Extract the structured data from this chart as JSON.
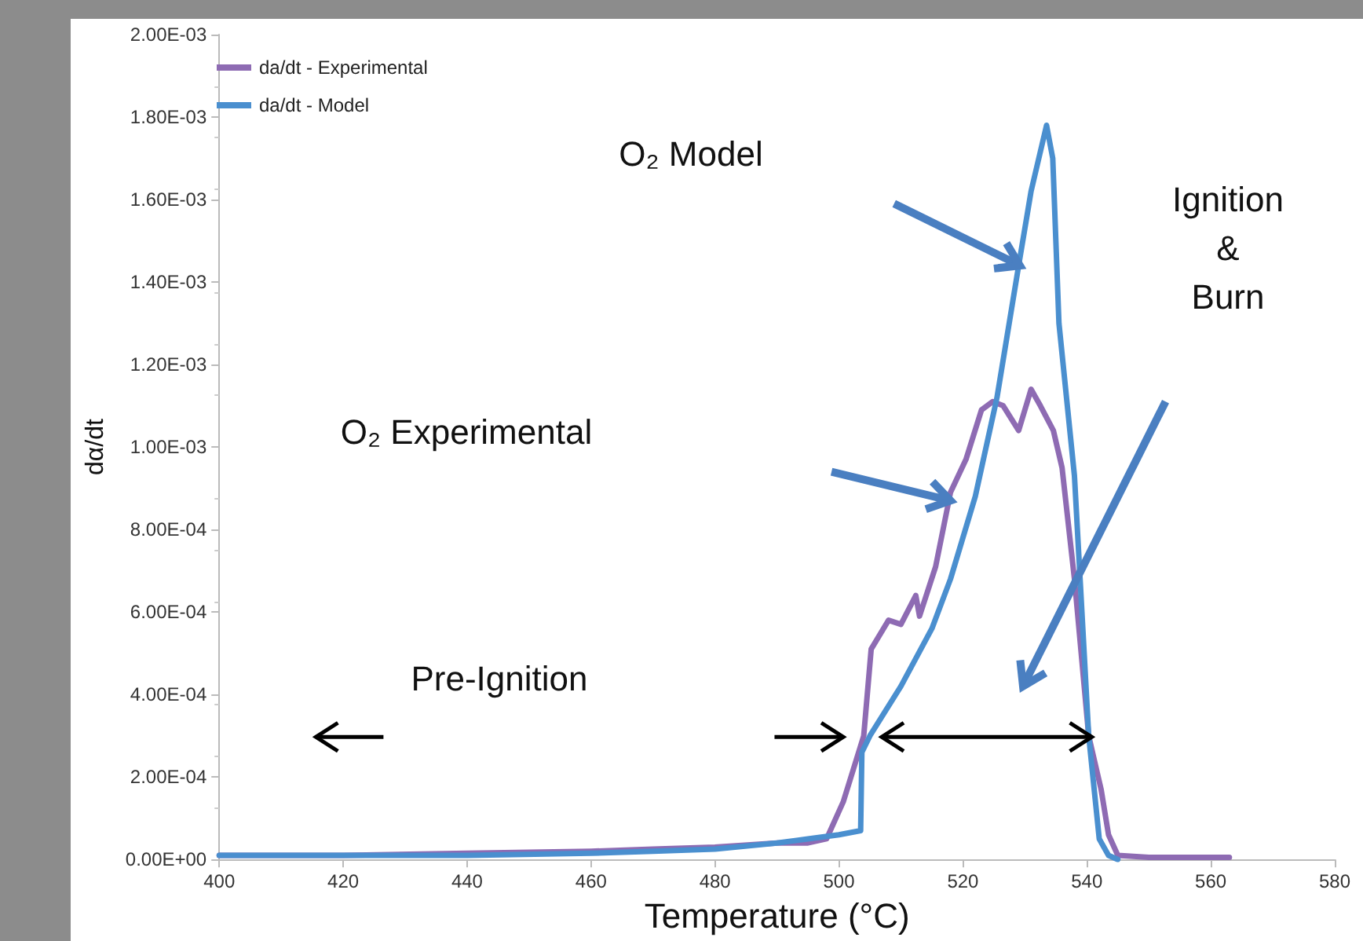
{
  "chart_data": {
    "type": "line",
    "xlabel": "Temperature (°C)",
    "ylabel": "dα/dt",
    "series": [
      {
        "name": "da/dt - Experimental",
        "color": "#8e6bb3",
        "x": [
          400,
          420,
          440,
          460,
          470,
          480,
          490,
          495,
          498,
          500.7,
          504,
          505.2,
          508,
          510,
          512.4,
          513,
          515.6,
          518,
          520.5,
          523,
          524.8,
          526.5,
          529,
          531,
          532.5,
          534.6,
          536,
          538,
          540.3,
          542.3,
          543.5,
          545,
          550,
          563
        ],
        "values": [
          1e-05,
          1e-05,
          1.5e-05,
          2e-05,
          2.5e-05,
          3e-05,
          4e-05,
          4e-05,
          5e-05,
          0.00014,
          0.0003,
          0.00051,
          0.00058,
          0.00057,
          0.00064,
          0.00059,
          0.00071,
          0.00089,
          0.00097,
          0.00109,
          0.00111,
          0.0011,
          0.00104,
          0.00114,
          0.0011,
          0.00104,
          0.00095,
          0.00068,
          0.0003,
          0.00017,
          6e-05,
          1e-05,
          5e-06,
          5e-06
        ]
      },
      {
        "name": "da/dt - Model",
        "color": "#4a8fcf",
        "x": [
          400,
          420,
          440,
          460,
          470,
          480,
          490,
          495,
          500,
          503.5,
          503.7,
          505,
          510,
          515,
          518,
          522,
          525.5,
          529,
          531,
          533.5,
          534.5,
          535.5,
          538,
          540.3,
          542,
          543.5,
          545
        ],
        "values": [
          1e-05,
          1e-05,
          1e-05,
          1.5e-05,
          2e-05,
          2.5e-05,
          4e-05,
          5e-05,
          6e-05,
          7e-05,
          0.00026,
          0.0003,
          0.00042,
          0.00056,
          0.00068,
          0.00088,
          0.00112,
          0.00144,
          0.00162,
          0.00178,
          0.0017,
          0.0013,
          0.00093,
          0.0003,
          5e-05,
          1e-05,
          0
        ]
      }
    ],
    "xlim": [
      400,
      580
    ],
    "xticks": [
      400,
      420,
      440,
      460,
      480,
      500,
      520,
      540,
      560,
      580
    ],
    "ylim": [
      0,
      0.002
    ],
    "yticks": [
      {
        "value": 0,
        "label": "0.00E+00"
      },
      {
        "value": 0.0002,
        "label": "2.00E-04"
      },
      {
        "value": 0.0004,
        "label": "4.00E-04"
      },
      {
        "value": 0.0006,
        "label": "6.00E-04"
      },
      {
        "value": 0.0008,
        "label": "8.00E-04"
      },
      {
        "value": 0.001,
        "label": "1.00E-03"
      },
      {
        "value": 0.0012,
        "label": "1.20E-03"
      },
      {
        "value": 0.0014,
        "label": "1.40E-03"
      },
      {
        "value": 0.0016,
        "label": "1.60E-03"
      },
      {
        "value": 0.0018,
        "label": "1.80E-03"
      },
      {
        "value": 0.002,
        "label": "2.00E-03"
      }
    ],
    "annotations": [
      "O₂ Model",
      "O₂ Experimental",
      "Ignition\n&\nBurn",
      "Pre-Ignition"
    ],
    "grid": false,
    "legend": "top left",
    "marker": "none",
    "line_style": "solid"
  }
}
